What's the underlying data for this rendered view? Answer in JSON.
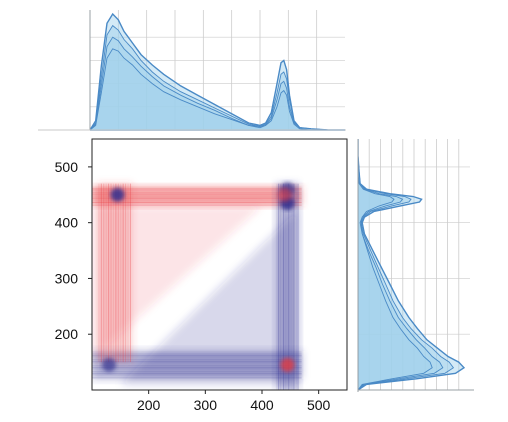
{
  "chart_data": {
    "type": "heatmap",
    "description_free": true,
    "x_ticks": [
      "200",
      "300",
      "400",
      "500"
    ],
    "y_ticks": [
      "500",
      "400",
      "300",
      "200"
    ],
    "xlim": [
      100,
      550
    ],
    "ylim": [
      100,
      550
    ],
    "grid": true,
    "colors": {
      "positive": "#e8383d",
      "negative": "#2f2f8f",
      "spectrum_line": "#4a8ac6",
      "spectrum_fill": "#9fd0ec",
      "grid": "#cccccc"
    },
    "heatmap_features": [
      {
        "x": 145,
        "y": 450,
        "sign": "negative",
        "intensity": 1.0
      },
      {
        "x": 445,
        "y": 145,
        "sign": "positive",
        "intensity": 0.9
      },
      {
        "x": 445,
        "y": 435,
        "sign": "negative",
        "intensity": 1.0
      },
      {
        "x": 445,
        "y": 460,
        "sign": "negative",
        "intensity": 0.8
      },
      {
        "x": 440,
        "y": 450,
        "sign": "positive",
        "intensity": 0.6
      },
      {
        "x": 130,
        "y": 145,
        "sign": "negative",
        "intensity": 0.8
      }
    ],
    "heatmap_bands": [
      {
        "orientation": "horizontal",
        "y_range": [
          430,
          465
        ],
        "x_range": [
          100,
          470
        ],
        "sign": "positive",
        "intensity": 0.75
      },
      {
        "orientation": "horizontal",
        "y_range": [
          120,
          170
        ],
        "x_range": [
          100,
          470
        ],
        "sign": "negative",
        "intensity": 0.65
      },
      {
        "orientation": "vertical",
        "x_range": [
          110,
          170
        ],
        "y_range": [
          150,
          470
        ],
        "sign": "positive",
        "intensity": 0.45
      },
      {
        "orientation": "vertical",
        "x_range": [
          425,
          465
        ],
        "y_range": [
          100,
          470
        ],
        "sign": "negative",
        "intensity": 0.55
      }
    ],
    "top_spectrum": {
      "x": [
        100,
        110,
        120,
        130,
        140,
        150,
        160,
        175,
        190,
        210,
        230,
        260,
        290,
        320,
        350,
        380,
        400,
        410,
        420,
        430,
        437,
        442,
        447,
        452,
        460,
        470,
        490,
        520,
        550
      ],
      "series": [
        {
          "y": [
            0,
            0.08,
            0.55,
            0.92,
            1.0,
            0.95,
            0.85,
            0.75,
            0.65,
            0.56,
            0.48,
            0.38,
            0.3,
            0.22,
            0.14,
            0.06,
            0.04,
            0.06,
            0.15,
            0.4,
            0.58,
            0.6,
            0.52,
            0.3,
            0.08,
            0.02,
            0.01,
            0.0,
            0.0
          ]
        },
        {
          "y": [
            0,
            0.06,
            0.45,
            0.82,
            0.9,
            0.86,
            0.78,
            0.7,
            0.6,
            0.5,
            0.42,
            0.33,
            0.26,
            0.19,
            0.12,
            0.05,
            0.03,
            0.05,
            0.12,
            0.32,
            0.48,
            0.5,
            0.44,
            0.26,
            0.07,
            0.02,
            0.01,
            0.0,
            0.0
          ]
        },
        {
          "y": [
            0,
            0.05,
            0.38,
            0.72,
            0.8,
            0.77,
            0.7,
            0.63,
            0.55,
            0.46,
            0.38,
            0.3,
            0.23,
            0.17,
            0.1,
            0.04,
            0.03,
            0.04,
            0.1,
            0.26,
            0.4,
            0.42,
            0.36,
            0.2,
            0.06,
            0.02,
            0.01,
            0.0,
            0.0
          ]
        },
        {
          "y": [
            0,
            0.04,
            0.32,
            0.62,
            0.7,
            0.68,
            0.62,
            0.56,
            0.48,
            0.4,
            0.33,
            0.26,
            0.2,
            0.14,
            0.09,
            0.04,
            0.02,
            0.04,
            0.08,
            0.2,
            0.32,
            0.34,
            0.3,
            0.16,
            0.05,
            0.01,
            0.0,
            0.0,
            0.0
          ]
        }
      ]
    },
    "right_spectrum": {
      "y": [
        100,
        110,
        120,
        130,
        140,
        150,
        160,
        175,
        190,
        210,
        230,
        260,
        290,
        320,
        350,
        380,
        400,
        410,
        420,
        430,
        437,
        442,
        447,
        452,
        460,
        470,
        490,
        520,
        550
      ],
      "series": [
        {
          "x": [
            0,
            0.08,
            0.55,
            0.92,
            1.0,
            0.95,
            0.85,
            0.75,
            0.65,
            0.56,
            0.48,
            0.38,
            0.3,
            0.22,
            0.14,
            0.06,
            0.04,
            0.06,
            0.15,
            0.4,
            0.58,
            0.6,
            0.52,
            0.3,
            0.08,
            0.02,
            0.01,
            0.0,
            0.0
          ]
        },
        {
          "x": [
            0,
            0.06,
            0.45,
            0.82,
            0.9,
            0.86,
            0.78,
            0.7,
            0.6,
            0.5,
            0.42,
            0.33,
            0.26,
            0.19,
            0.12,
            0.05,
            0.03,
            0.05,
            0.12,
            0.32,
            0.48,
            0.5,
            0.44,
            0.26,
            0.07,
            0.02,
            0.01,
            0.0,
            0.0
          ]
        },
        {
          "x": [
            0,
            0.05,
            0.38,
            0.72,
            0.8,
            0.77,
            0.7,
            0.63,
            0.55,
            0.46,
            0.38,
            0.3,
            0.23,
            0.17,
            0.1,
            0.04,
            0.03,
            0.04,
            0.1,
            0.26,
            0.4,
            0.42,
            0.36,
            0.2,
            0.06,
            0.02,
            0.01,
            0.0,
            0.0
          ]
        },
        {
          "x": [
            0,
            0.04,
            0.32,
            0.62,
            0.7,
            0.68,
            0.62,
            0.56,
            0.48,
            0.4,
            0.33,
            0.26,
            0.2,
            0.14,
            0.09,
            0.04,
            0.02,
            0.04,
            0.08,
            0.2,
            0.32,
            0.34,
            0.3,
            0.16,
            0.05,
            0.01,
            0.0,
            0.0,
            0.0
          ]
        }
      ]
    }
  }
}
